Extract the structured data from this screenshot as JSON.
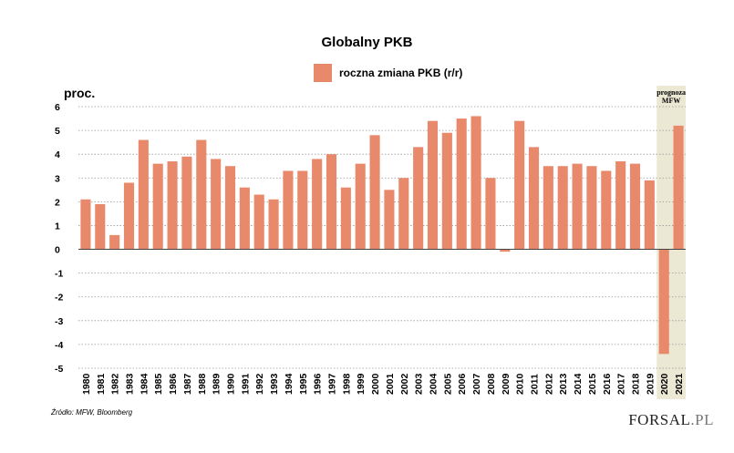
{
  "logo": {
    "main": "FORSAL",
    "suffix": ".PL"
  },
  "source": "Źródło: MFW, Bloomberg",
  "colors": {
    "bar": "#E8896B",
    "forecast_bg": "#EBE8D4",
    "grid": "#999999"
  },
  "chart_data": {
    "type": "bar",
    "title": "Globalny PKB",
    "ylabel": "proc.",
    "ylim": [
      -5,
      6
    ],
    "yticks": [
      "6",
      "5",
      "4",
      "3",
      "2",
      "1",
      "0",
      "-1",
      "-2",
      "-3",
      "-4",
      "-5"
    ],
    "grid": true,
    "legend_position": "top-center",
    "forecast_label": [
      "prognoza",
      "MFW"
    ],
    "forecast_categories": [
      "2020",
      "2021"
    ],
    "categories": [
      "1980",
      "1981",
      "1982",
      "1983",
      "1984",
      "1985",
      "1986",
      "1987",
      "1988",
      "1989",
      "1990",
      "1991",
      "1992",
      "1993",
      "1994",
      "1995",
      "1996",
      "1997",
      "1998",
      "1999",
      "2000",
      "2001",
      "2002",
      "2003",
      "2004",
      "2005",
      "2006",
      "2007",
      "2008",
      "2009",
      "2010",
      "2011",
      "2012",
      "2013",
      "2014",
      "2015",
      "2016",
      "2017",
      "2018",
      "2019",
      "2020",
      "2021"
    ],
    "series": [
      {
        "name": "roczna zmiana PKB (r/r)",
        "values": [
          2.1,
          1.9,
          0.6,
          2.8,
          4.6,
          3.6,
          3.7,
          3.9,
          4.6,
          3.8,
          3.5,
          2.6,
          2.3,
          2.1,
          3.3,
          3.3,
          3.8,
          4.0,
          2.6,
          3.6,
          4.8,
          2.5,
          3.0,
          4.3,
          5.4,
          4.9,
          5.5,
          5.6,
          3.0,
          -0.1,
          5.4,
          4.3,
          3.5,
          3.5,
          3.6,
          3.5,
          3.3,
          3.7,
          3.6,
          2.9,
          -4.4,
          5.2
        ]
      }
    ]
  }
}
